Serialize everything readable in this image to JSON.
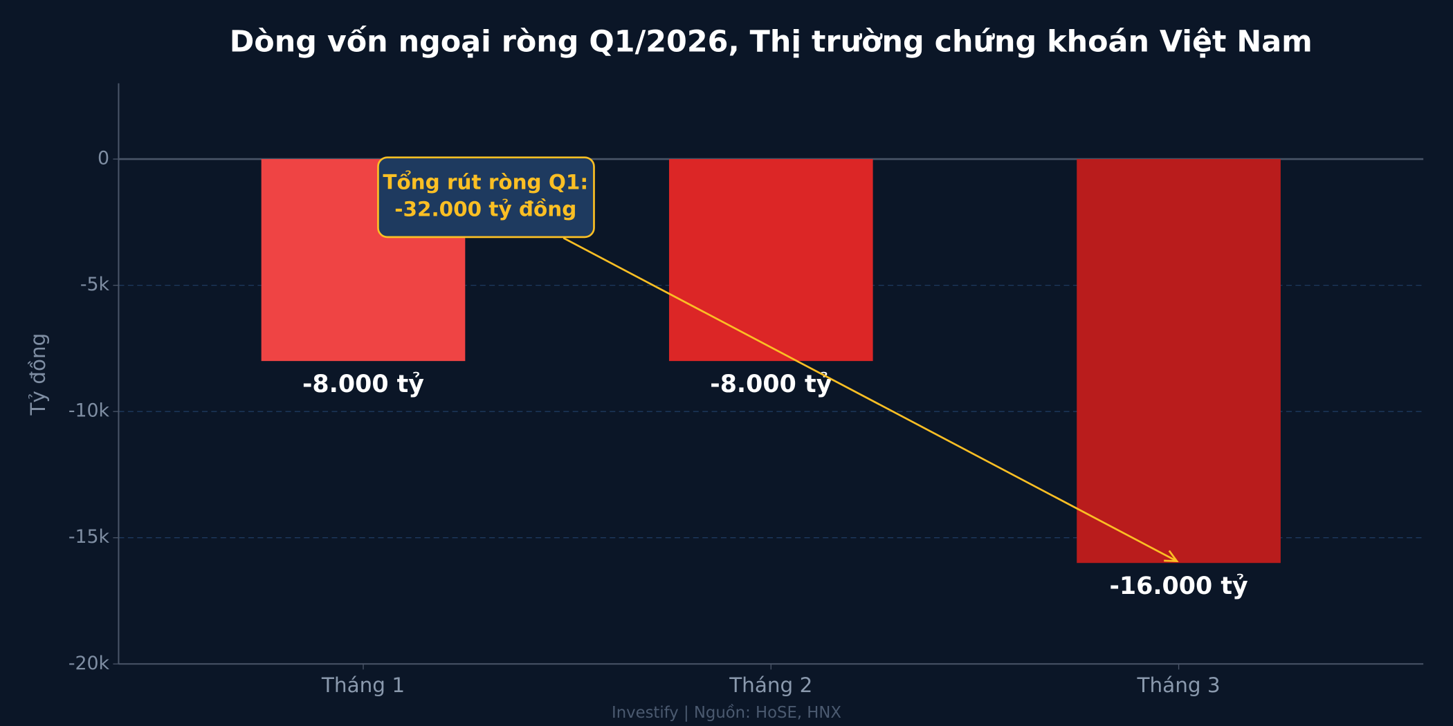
{
  "chart_data": {
    "type": "bar",
    "title": "Dòng vốn ngoại ròng Q1/2026, Thị trường chứng khoán Việt Nam",
    "y_label": "Tỷ đồng",
    "categories": [
      "Tháng 1",
      "Tháng 2",
      "Tháng 3"
    ],
    "values": [
      -8000,
      -8000,
      -16000
    ],
    "value_labels": [
      "-8.000 tỷ",
      "-8.000 tỷ",
      "-16.000 tỷ"
    ],
    "colors": [
      "#ef4444",
      "#dc2626",
      "#b91c1c"
    ],
    "ylim": [
      -20000,
      3000
    ],
    "yticks": [
      {
        "value": -20000,
        "label": "-20k"
      },
      {
        "value": -15000,
        "label": "-15k"
      },
      {
        "value": -10000,
        "label": "-10k"
      },
      {
        "value": -5000,
        "label": "-5k"
      },
      0
    ],
    "grid": true,
    "annotation": [
      "Tổng rút ròng Q1:",
      "-32.000 tỷ đồng"
    ],
    "footer": "Investify | Nguồn: HoSE, HNX"
  }
}
